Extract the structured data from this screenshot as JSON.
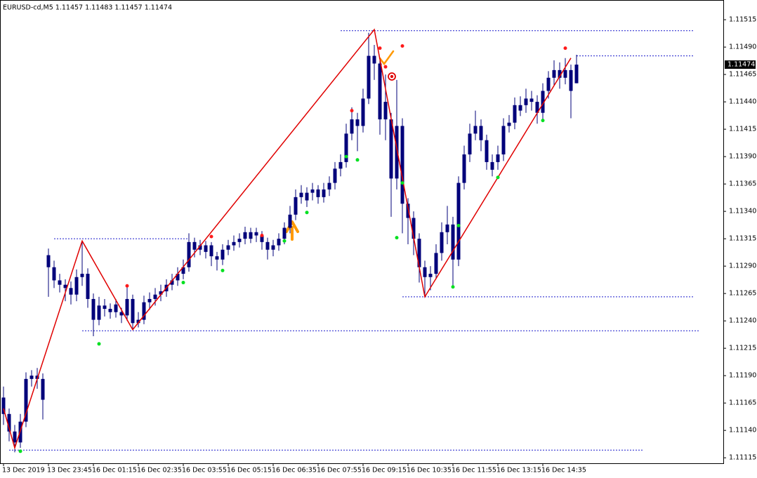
{
  "chart_data": {
    "type": "candlestick",
    "title": "EURUSD-cd,M5  1.11457 1.11483 1.11457 1.11474",
    "color": "#00007a",
    "categories": [
      "13 Dec 2019",
      null,
      null,
      null,
      null,
      null,
      null,
      null,
      "13 Dec 23:45",
      null,
      null,
      null,
      null,
      null,
      null,
      null,
      "16 Dec 01:15",
      null,
      null,
      null,
      null,
      null,
      null,
      null,
      "16 Dec 02:35",
      null,
      null,
      null,
      null,
      null,
      null,
      null,
      "16 Dec 03:55",
      null,
      null,
      null,
      null,
      null,
      null,
      null,
      "16 Dec 05:15",
      null,
      null,
      null,
      null,
      null,
      null,
      null,
      "16 Dec 06:35",
      null,
      null,
      null,
      null,
      null,
      null,
      null,
      "16 Dec 07:55",
      null,
      null,
      null,
      null,
      null,
      null,
      null,
      "16 Dec 09:15",
      null,
      null,
      null,
      null,
      null,
      null,
      null,
      "16 Dec 10:35",
      null,
      null,
      null,
      null,
      null,
      null,
      null,
      "16 Dec 11:55",
      null,
      null,
      null,
      null,
      null,
      null,
      null,
      "16 Dec 13:15",
      null,
      null,
      null,
      null,
      null,
      null,
      null,
      "16 Dec 14:35",
      null,
      null,
      null,
      null,
      null,
      null
    ],
    "open": [
      1.1117,
      1.11155,
      1.11139,
      1.11129,
      1.11148,
      1.11187,
      1.1119,
      1.11187,
      1.113,
      1.11289,
      1.11277,
      1.11273,
      1.1127,
      1.11264,
      1.1128,
      1.11283,
      1.1126,
      1.11241,
      1.11254,
      1.11251,
      1.11255,
      1.11248,
      1.11245,
      1.1126,
      1.11238,
      1.11241,
      1.11257,
      1.1126,
      1.11264,
      1.11267,
      1.11273,
      1.11277,
      1.11283,
      1.11289,
      1.11312,
      1.11305,
      1.11303,
      1.11309,
      1.11299,
      1.11296,
      1.11305,
      1.11309,
      1.11312,
      1.11315,
      1.11315,
      1.11321,
      1.11318,
      1.11312,
      1.11305,
      1.11309,
      1.11315,
      1.11325,
      1.11337,
      1.11353,
      1.1135,
      1.11357,
      1.1136,
      1.11353,
      1.1136,
      1.11366,
      1.11379,
      1.11385,
      1.11411,
      1.11424,
      1.11418,
      1.11443,
      1.11482,
      1.11475,
      1.1144,
      1.11424,
      1.1137,
      1.11418,
      1.11347,
      1.11334,
      1.11315,
      1.11289,
      1.1128,
      1.11283,
      1.11302,
      1.11321,
      1.11328,
      1.11296,
      1.11366,
      1.11392,
      1.11411,
      1.11418,
      1.11405,
      1.11378,
      1.11385,
      1.11392,
      1.11418,
      1.11421,
      1.11432,
      1.11437,
      1.11443,
      1.1144,
      1.1143,
      1.1145,
      1.11462,
      1.11469,
      1.11462,
      1.11469,
      1.11457
    ],
    "high": [
      1.1118,
      1.1116,
      1.11145,
      1.11155,
      1.11193,
      1.11195,
      1.11197,
      1.11192,
      1.11306,
      1.11295,
      1.11283,
      1.11278,
      1.11276,
      1.11287,
      1.11312,
      1.11288,
      1.11265,
      1.11262,
      1.1126,
      1.11256,
      1.1126,
      1.11252,
      1.11272,
      1.11264,
      1.11248,
      1.11263,
      1.11266,
      1.1127,
      1.11273,
      1.11278,
      1.11283,
      1.11289,
      1.11296,
      1.1132,
      1.11316,
      1.11314,
      1.11313,
      1.11312,
      1.11303,
      1.1131,
      1.11314,
      1.11318,
      1.1132,
      1.11326,
      1.11325,
      1.11325,
      1.11322,
      1.11316,
      1.11314,
      1.1132,
      1.1133,
      1.11345,
      1.1136,
      1.11364,
      1.11362,
      1.11366,
      1.11364,
      1.11366,
      1.11372,
      1.11385,
      1.11392,
      1.1142,
      1.11435,
      1.1143,
      1.11452,
      1.11503,
      1.11492,
      1.1148,
      1.11465,
      1.1143,
      1.1146,
      1.11425,
      1.11352,
      1.1134,
      1.1132,
      1.11295,
      1.1129,
      1.1131,
      1.1133,
      1.11345,
      1.11335,
      1.11372,
      1.114,
      1.1142,
      1.11432,
      1.11424,
      1.1141,
      1.11392,
      1.114,
      1.11425,
      1.11428,
      1.11444,
      1.11445,
      1.11452,
      1.1145,
      1.11446,
      1.11457,
      1.11468,
      1.11478,
      1.11476,
      1.1148,
      1.11474,
      1.11483
    ],
    "low": [
      1.11145,
      1.1113,
      1.1112,
      1.11124,
      1.11143,
      1.1118,
      1.11178,
      1.1115,
      1.11262,
      1.1127,
      1.11266,
      1.11258,
      1.11255,
      1.11258,
      1.11272,
      1.11252,
      1.11226,
      1.11236,
      1.11244,
      1.11242,
      1.11243,
      1.11238,
      1.1124,
      1.11233,
      1.11234,
      1.11237,
      1.1125,
      1.11254,
      1.11258,
      1.11262,
      1.11268,
      1.11272,
      1.11278,
      1.11285,
      1.11298,
      1.113,
      1.11297,
      1.1129,
      1.11286,
      1.11291,
      1.113,
      1.11304,
      1.11307,
      1.1131,
      1.11311,
      1.11312,
      1.11305,
      1.11296,
      1.11299,
      1.11304,
      1.1131,
      1.1132,
      1.11332,
      1.11347,
      1.11344,
      1.1135,
      1.11347,
      1.11348,
      1.11354,
      1.1136,
      1.11372,
      1.1138,
      1.11405,
      1.11395,
      1.11412,
      1.11438,
      1.1146,
      1.1141,
      1.11405,
      1.11335,
      1.1136,
      1.1132,
      1.1131,
      1.113,
      1.11275,
      1.11262,
      1.11268,
      1.11278,
      1.11295,
      1.1131,
      1.1127,
      1.1129,
      1.1136,
      1.11385,
      1.11405,
      1.11395,
      1.11378,
      1.11372,
      1.11378,
      1.11386,
      1.11412,
      1.11415,
      1.11427,
      1.1143,
      1.11432,
      1.1142,
      1.11424,
      1.11443,
      1.11455,
      1.11452,
      1.11456,
      1.11425,
      1.11457
    ],
    "close": [
      1.11155,
      1.11139,
      1.11129,
      1.11148,
      1.11187,
      1.1119,
      1.11187,
      1.11168,
      1.11289,
      1.11277,
      1.11273,
      1.1127,
      1.11264,
      1.1128,
      1.11283,
      1.1126,
      1.11241,
      1.11254,
      1.11251,
      1.11248,
      1.11248,
      1.11245,
      1.1126,
      1.11238,
      1.11241,
      1.11257,
      1.1126,
      1.11264,
      1.11267,
      1.11273,
      1.11277,
      1.11283,
      1.11289,
      1.11312,
      1.11305,
      1.11309,
      1.11309,
      1.11299,
      1.11296,
      1.11305,
      1.11309,
      1.11312,
      1.11315,
      1.11321,
      1.11321,
      1.11318,
      1.11312,
      1.11305,
      1.11309,
      1.11315,
      1.11325,
      1.11337,
      1.11353,
      1.11357,
      1.11357,
      1.1136,
      1.11353,
      1.1136,
      1.11366,
      1.11379,
      1.11385,
      1.11411,
      1.11424,
      1.11418,
      1.11443,
      1.11482,
      1.11475,
      1.11424,
      1.11424,
      1.1137,
      1.11418,
      1.11347,
      1.11334,
      1.11315,
      1.11289,
      1.1128,
      1.11283,
      1.11302,
      1.11321,
      1.11328,
      1.11296,
      1.11366,
      1.11392,
      1.11411,
      1.11418,
      1.11405,
      1.11385,
      1.11385,
      1.11392,
      1.11418,
      1.11421,
      1.11437,
      1.11437,
      1.11443,
      1.1144,
      1.1143,
      1.1145,
      1.11462,
      1.11469,
      1.11462,
      1.11469,
      1.1145,
      1.11474
    ],
    "ylim": [
      1.1111,
      1.11533
    ],
    "yticks": [
      1.11515,
      {
        "value": 1.1149,
        "label": "1.11490"
      },
      1.11465,
      {
        "value": 1.1144,
        "label": "1.11440"
      },
      1.11415,
      {
        "value": 1.1139,
        "label": "1.11390"
      },
      1.11365,
      {
        "value": 1.1134,
        "label": "1.11340"
      },
      1.11315,
      {
        "value": 1.1129,
        "label": "1.11290"
      },
      1.11265,
      {
        "value": 1.1124,
        "label": "1.11240"
      },
      1.11215,
      {
        "value": 1.1119,
        "label": "1.11190"
      },
      1.11165,
      {
        "value": 1.1114,
        "label": "1.11140"
      },
      1.11115
    ],
    "zigzag": {
      "color": "#e00000",
      "x": [
        0,
        2,
        14,
        23,
        66,
        75,
        101
      ],
      "values": [
        1.1116,
        1.11124,
        1.11313,
        1.11232,
        1.11506,
        1.11262,
        1.1148
      ]
    },
    "fractal_highs": {
      "color": "#ff1a1a",
      "x": [
        22,
        37,
        46,
        62,
        67,
        68,
        71,
        100
      ],
      "values": [
        1.11272,
        1.11317,
        1.11318,
        1.11432,
        1.11489,
        1.11472,
        1.11491,
        1.11489
      ]
    },
    "fractal_lows": {
      "color": "#00e020",
      "x": [
        3,
        17,
        32,
        39,
        50,
        54,
        61,
        63,
        70,
        71,
        80,
        81,
        88,
        96
      ],
      "values": [
        1.11121,
        1.11219,
        1.11275,
        1.11286,
        1.11313,
        1.11339,
        1.1139,
        1.11387,
        1.11316,
        1.11366,
        1.11271,
        1.11327,
        1.11371,
        1.11423
      ]
    },
    "levels": {
      "color": "#1a1acc",
      "values": [
        1.11505,
        1.11482,
        1.11315,
        1.11262,
        1.11231,
        1.11122
      ],
      "from": [
        60,
        102,
        9,
        71,
        14,
        1
      ],
      "to": [
        123,
        123,
        33,
        123,
        124,
        114
      ]
    }
  }
}
